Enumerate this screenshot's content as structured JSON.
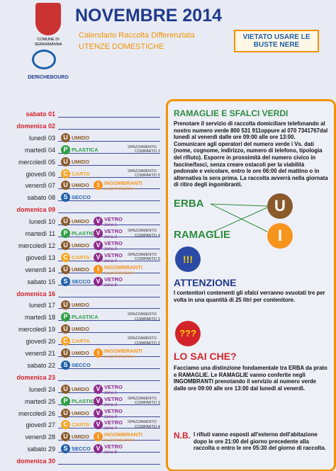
{
  "header": {
    "comune": "COMUNE DI SERRAMANNA",
    "company": "DERICHEBOURG",
    "title": "NOVEMBRE 2014",
    "subtitle": "Calendario Raccolta Differenziata",
    "audience": "UTENZE DOMESTICHE",
    "warning": "VIETATO USARE LE BUSTE NERE"
  },
  "calendar": [
    {
      "day": "sabato 01",
      "holiday": true,
      "items": []
    },
    {
      "day": "domenica 02",
      "holiday": true,
      "items": []
    },
    {
      "day": "lunedì 03",
      "items": [
        {
          "icon": "U",
          "label": "UMIDO"
        }
      ]
    },
    {
      "day": "martedì 04",
      "items": [
        {
          "icon": "P",
          "label": "PLASTICA"
        },
        {
          "label": "SPAZZAMENTO",
          "sub": "COMPARTO 3"
        }
      ]
    },
    {
      "day": "mercoledì 05",
      "items": [
        {
          "icon": "U",
          "label": "UMIDO"
        }
      ]
    },
    {
      "day": "giovedì 06",
      "items": [
        {
          "icon": "C",
          "label": "CARTA"
        },
        {
          "label": "SPAZZAMENTO",
          "sub": "COMPARTO 5"
        }
      ]
    },
    {
      "day": "venerdì 07",
      "items": [
        {
          "icon": "U",
          "label": "UMIDO"
        },
        {
          "icon": "I",
          "label": "INGOMBRANTI",
          "sub": "su prenotazione"
        }
      ]
    },
    {
      "day": "sabato 08",
      "items": [
        {
          "icon": "S",
          "label": "SECCO"
        }
      ]
    },
    {
      "day": "domenica 09",
      "holiday": true,
      "items": []
    },
    {
      "day": "lunedì 10",
      "items": [
        {
          "icon": "U",
          "label": "UMIDO"
        },
        {
          "icon": "V",
          "label": "VETRO",
          "sub": "zona 1"
        }
      ]
    },
    {
      "day": "martedì 11",
      "items": [
        {
          "icon": "P",
          "label": "PLASTICA"
        },
        {
          "icon": "V",
          "label": "VETRO",
          "sub": "zona 2"
        },
        {
          "label": "SPAZZAMENTO",
          "sub": "COMPARTO 4"
        }
      ]
    },
    {
      "day": "mercoledì 12",
      "items": [
        {
          "icon": "U",
          "label": "UMIDO"
        },
        {
          "icon": "V",
          "label": "VETRO",
          "sub": "zona 3"
        }
      ]
    },
    {
      "day": "giovedì 13",
      "items": [
        {
          "icon": "C",
          "label": "CARTA"
        },
        {
          "icon": "V",
          "label": "VETRO",
          "sub": "zona 4"
        },
        {
          "label": "SPAZZAMENTO",
          "sub": "COMPARTO 5"
        }
      ]
    },
    {
      "day": "venerdì 14",
      "items": [
        {
          "icon": "U",
          "label": "UMIDO"
        },
        {
          "icon": "I",
          "label": "INGOMBRANTI",
          "sub": "su prenotazione"
        }
      ]
    },
    {
      "day": "sabato 15",
      "items": [
        {
          "icon": "S",
          "label": "SECCO"
        },
        {
          "icon": "V",
          "label": "VETRO",
          "sub": "zona 5"
        }
      ]
    },
    {
      "day": "domenica 16",
      "holiday": true,
      "items": []
    },
    {
      "day": "lunedì 17",
      "items": [
        {
          "icon": "U",
          "label": "UMIDO"
        }
      ]
    },
    {
      "day": "martedì 18",
      "items": [
        {
          "icon": "P",
          "label": "PLASTICA"
        },
        {
          "label": "SPAZZAMENTO",
          "sub": "COMPARTO 1"
        }
      ]
    },
    {
      "day": "mercoledì 19",
      "items": [
        {
          "icon": "U",
          "label": "UMIDO"
        }
      ]
    },
    {
      "day": "giovedì 20",
      "items": [
        {
          "icon": "C",
          "label": "CARTA"
        },
        {
          "label": "SPAZZAMENTO",
          "sub": "COMPARTO 2"
        }
      ]
    },
    {
      "day": "venerdì 21",
      "items": [
        {
          "icon": "U",
          "label": "UMIDO"
        },
        {
          "icon": "I",
          "label": "INGOMBRANTI",
          "sub": "su prenotazione"
        }
      ]
    },
    {
      "day": "sabato 22",
      "items": [
        {
          "icon": "S",
          "label": "SECCO"
        }
      ]
    },
    {
      "day": "domenica 23",
      "holiday": true,
      "items": []
    },
    {
      "day": "lunedì 24",
      "items": [
        {
          "icon": "U",
          "label": "UMIDO"
        },
        {
          "icon": "V",
          "label": "VETRO",
          "sub": "zona 1"
        }
      ]
    },
    {
      "day": "martedì 25",
      "items": [
        {
          "icon": "P",
          "label": "PLASTICA"
        },
        {
          "icon": "V",
          "label": "VETRO",
          "sub": "zona 2"
        },
        {
          "label": "SPAZZAMENTO",
          "sub": "COMPARTO 3"
        }
      ]
    },
    {
      "day": "mercoledì 26",
      "items": [
        {
          "icon": "U",
          "label": "UMIDO"
        },
        {
          "icon": "V",
          "label": "VETRO",
          "sub": "zona 3"
        }
      ]
    },
    {
      "day": "giovedì 27",
      "items": [
        {
          "icon": "C",
          "label": "CARTA"
        },
        {
          "icon": "V",
          "label": "VETRO",
          "sub": "zona 4"
        },
        {
          "label": "SPAZZAMENTO",
          "sub": "COMPARTO 4"
        }
      ]
    },
    {
      "day": "venerdì 28",
      "items": [
        {
          "icon": "U",
          "label": "UMIDO"
        },
        {
          "icon": "I",
          "label": "INGOMBRANTI",
          "sub": "su prenotazione"
        }
      ]
    },
    {
      "day": "sabato 29",
      "items": [
        {
          "icon": "S",
          "label": "SECCO"
        },
        {
          "icon": "V",
          "label": "VETRO",
          "sub": "zona 5"
        }
      ]
    },
    {
      "day": "domenica 30",
      "holiday": true,
      "items": []
    }
  ],
  "info": {
    "title": "RAMAGLIE E SFALCI VERDI",
    "text": "Prenotare il servizio di raccolta domiciliare telefonando al nostro numero verde 800 531 911oppure al 070 7341767dal lunedì al venerdì dalle ore 09:00 alle ore 13:00. Comunicare agli operatori del numero verde i Vs. dati (nome, cognome, indirizzo, numero di telefono, tipologia del rifiuto). Esporre in prossimità del numero civico in fascine/fasci, senza creare ostacoli per la viabilità pedonale e veicolare, entro le ore 06:00 del mattino o in alternativa la sera prima. La raccolta avverrà nella giornata di ritiro degli ingombranti.",
    "erba": "ERBA",
    "erba_icon": "U",
    "ramaglie": "RAMAGLIE",
    "ramaglie_icon": "I",
    "attention_icon": "!!!",
    "attention_title": "ATTENZIONE",
    "attention_text": "I contenitori contenenti gli sfalci verranno svuotati tre per volta in una quantità di 25 litri per contenitore.",
    "know_icon": "???",
    "know_title": "LO SAI CHE?",
    "know_text": "Facciamo una distinzione fondamentale tra ERBA da prato e RAMAGLIE. Le RAMAGLIE vanno conferite negli INGOMBRANTI prenotando il servizio al numero verde dalle ore 09:00 alle ore 13:00 dal lunedì al venerdì.",
    "nb_title": "N.B.",
    "nb_text": "I rifiuti vanno esposti all'esterno dell'abitazione dopo le ore 21:00 del giorno precedente alla raccolta o entro le ore 05:30 del giorno di raccolta."
  }
}
